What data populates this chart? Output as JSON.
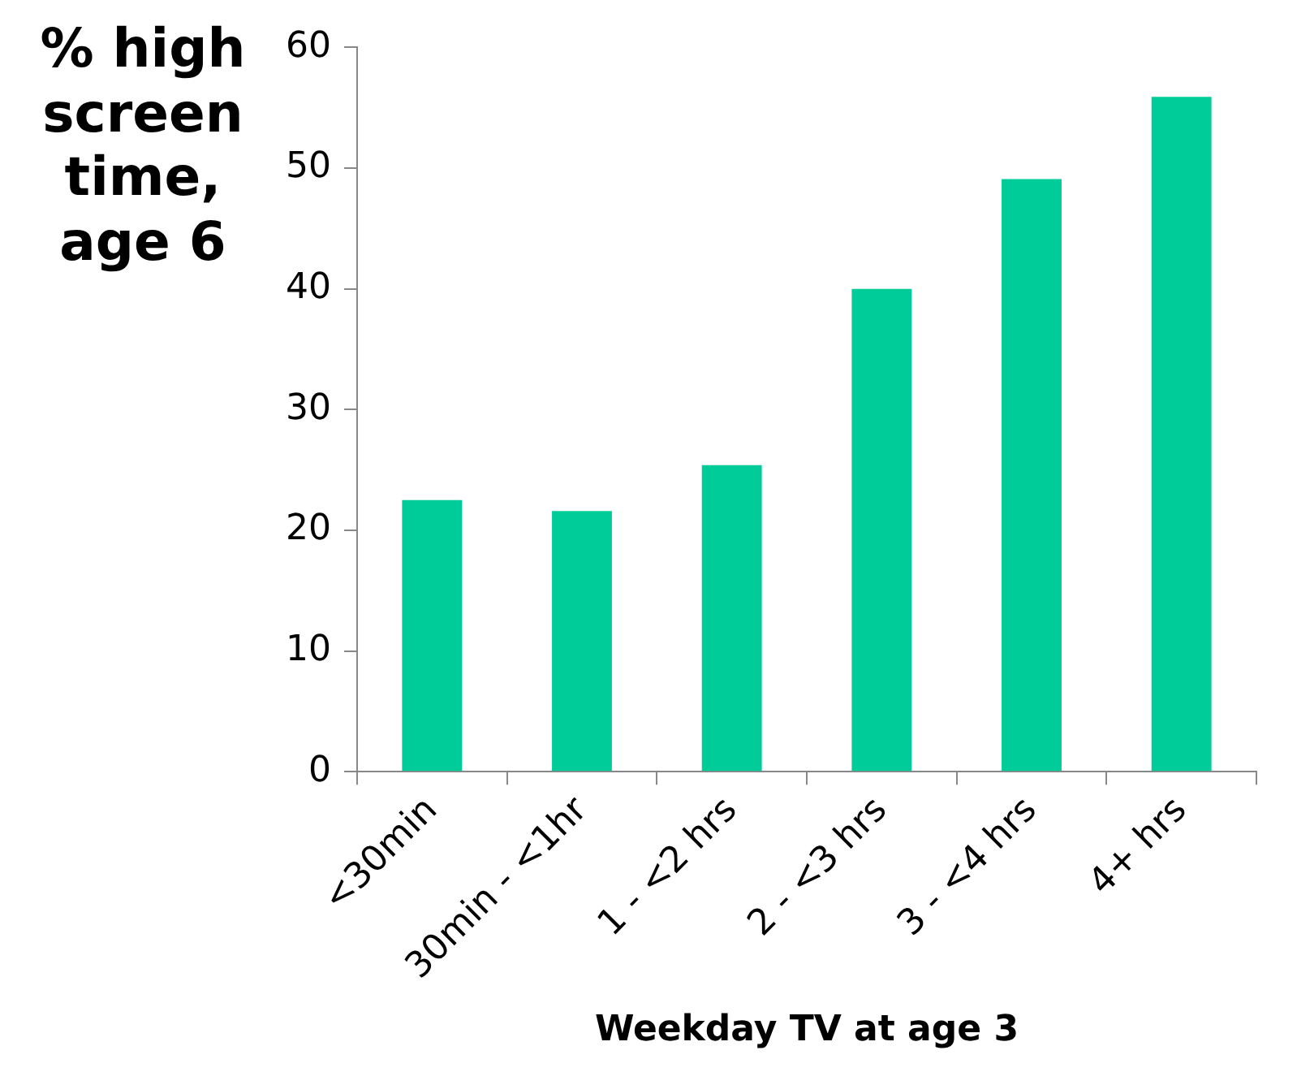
{
  "chart_data": {
    "type": "bar",
    "xlabel": "Weekday TV at age 3",
    "ylabel": "% high screen time, age 6",
    "categories": [
      "<30min",
      "30min - <1hr",
      "1 - <2 hrs",
      "2 - <3 hrs",
      "3 - <4 hrs",
      "4+ hrs"
    ],
    "values": [
      22.5,
      21.6,
      25.4,
      40,
      49.1,
      55.9
    ],
    "color": "#00cc99",
    "ylim": [
      0,
      60
    ],
    "yticks": [
      0,
      10,
      20,
      30,
      40,
      50,
      60
    ],
    "grid": false,
    "legend": false
  }
}
